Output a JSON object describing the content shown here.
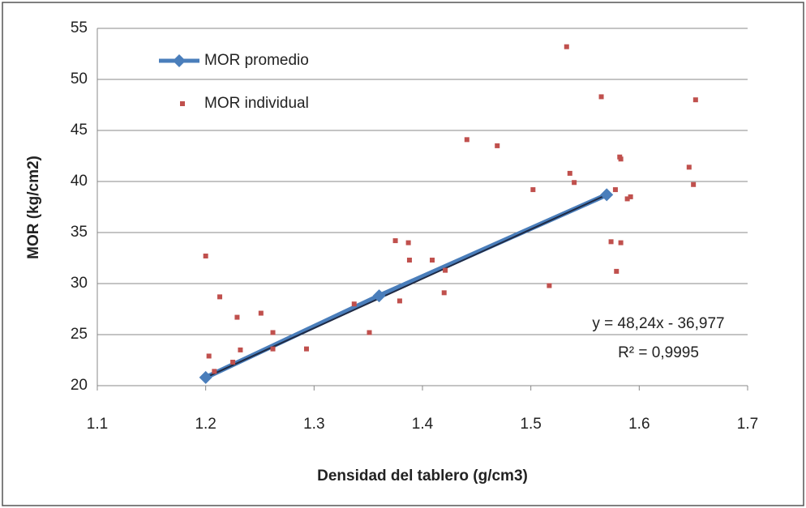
{
  "chart_data": {
    "type": "scatter",
    "x_label": "Densidad del tablero (g/cm3)",
    "y_label": "MOR (kg/cm2)",
    "xlim": [
      1.1,
      1.7
    ],
    "xticks": [
      1.1,
      1.2,
      1.3,
      1.4,
      1.5,
      1.6,
      1.7
    ],
    "ylim": [
      20,
      55
    ],
    "yticks": [
      20,
      25,
      30,
      35,
      40,
      45,
      50,
      55
    ],
    "grid": true,
    "legend": "top-left",
    "series": [
      {
        "name": "MOR promedio",
        "color": "#4a7ebb",
        "mode": "line",
        "x": [
          1.2,
          1.36,
          1.57
        ],
        "values": [
          20.8,
          28.8,
          38.7
        ]
      },
      {
        "name": "MOR individual",
        "color": "#c0504d",
        "mode": "markers",
        "x": [
          1.2,
          1.203,
          1.208,
          1.213,
          1.225,
          1.229,
          1.232,
          1.251,
          1.262,
          1.262,
          1.293,
          1.337,
          1.351,
          1.375,
          1.379,
          1.387,
          1.388,
          1.409,
          1.42,
          1.421,
          1.441,
          1.469,
          1.502,
          1.517,
          1.533,
          1.536,
          1.54,
          1.565,
          1.574,
          1.578,
          1.579,
          1.582,
          1.583,
          1.583,
          1.589,
          1.592,
          1.646,
          1.65,
          1.652
        ],
        "values": [
          32.7,
          22.9,
          21.4,
          28.7,
          22.3,
          26.7,
          23.5,
          27.1,
          25.2,
          23.6,
          23.6,
          28.0,
          25.2,
          34.2,
          28.3,
          34.0,
          32.3,
          32.3,
          29.1,
          31.3,
          44.1,
          43.5,
          39.2,
          29.8,
          53.2,
          40.8,
          39.9,
          48.3,
          34.1,
          39.2,
          31.2,
          42.4,
          42.2,
          34.0,
          38.3,
          38.5,
          41.4,
          39.7,
          48.0
        ]
      }
    ],
    "trendline": {
      "equation": "y = 48,24x - 36,977",
      "r2": "R² = 0,9995",
      "color": "#1f2a44"
    }
  }
}
